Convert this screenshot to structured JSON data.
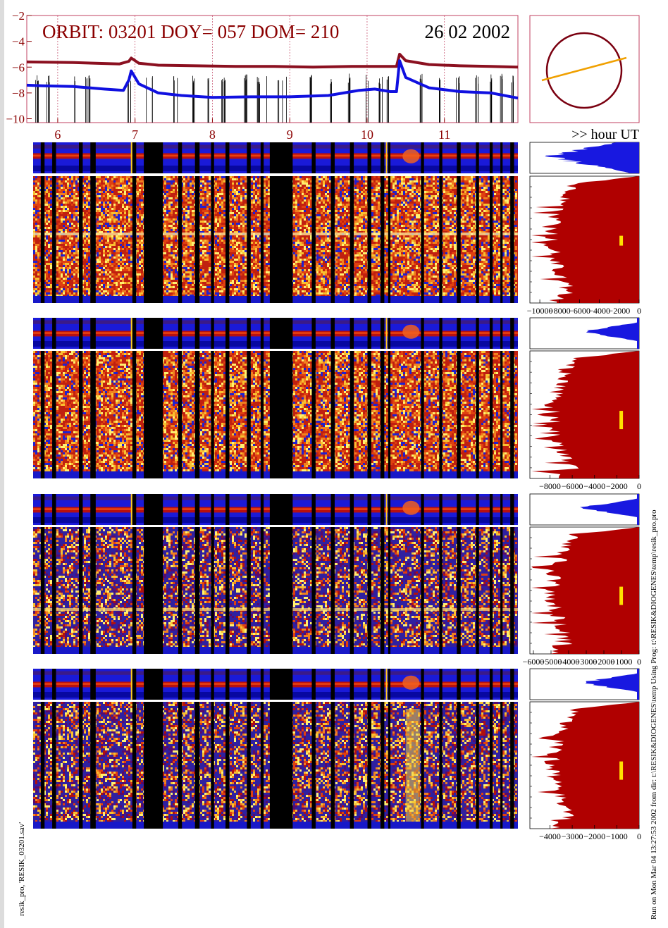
{
  "header": {
    "orbit_text": "ORBIT: 03201 DOY=  057 DOM=  210",
    "date_text": "26 02 2002",
    "hour_label": ">> hour UT"
  },
  "colors": {
    "title": "#8b0000",
    "curve_top": "#8b1020",
    "curve_bottom": "#1010e0",
    "hist_small": "#1818e0",
    "hist_large": "#b00000",
    "marker": "#ffe000",
    "orbit_line": "#f0a000",
    "vgrid": "#c04060"
  },
  "footer": {
    "left_text": "resik_pro, 'RESIK_03201.sav'",
    "right_text": "Run on Mon Mar 04 13:27:53 2002  from dir: t:\\RESIK&DIOGENES\\temp Using Prog: t:\\RESIK&DIOGENES\\temp\\resik_pro.pro"
  },
  "chart_data": [
    {
      "type": "line",
      "name": "top-lightcurve",
      "ylim": [
        -10.3,
        -2
      ],
      "yticks": [
        -2,
        -4,
        -6,
        -8,
        -10
      ],
      "xlim": [
        5.6,
        11.95
      ],
      "xticks": [
        6,
        7,
        8,
        9,
        10,
        11
      ],
      "series": [
        {
          "name": "",
          "color": "#8b1020",
          "x": [
            5.6,
            6.2,
            6.8,
            6.92,
            6.95,
            7.05,
            7.3,
            7.8,
            8.3,
            8.8,
            9.3,
            9.8,
            10.2,
            10.38,
            10.42,
            10.5,
            10.8,
            11.2,
            11.6,
            11.95
          ],
          "y": [
            -5.6,
            -5.65,
            -5.75,
            -5.55,
            -5.3,
            -5.7,
            -5.85,
            -5.9,
            -5.95,
            -5.95,
            -6.0,
            -5.95,
            -5.95,
            -5.95,
            -5.0,
            -5.5,
            -5.8,
            -5.9,
            -5.95,
            -6.0
          ]
        },
        {
          "name": "",
          "color": "#1010e0",
          "x": [
            5.6,
            5.8,
            6.2,
            6.6,
            6.85,
            6.92,
            6.95,
            7.05,
            7.3,
            7.6,
            8.0,
            8.5,
            9.0,
            9.5,
            9.9,
            10.1,
            10.3,
            10.38,
            10.42,
            10.5,
            10.8,
            11.2,
            11.6,
            11.95
          ],
          "y": [
            -7.4,
            -7.45,
            -7.5,
            -7.7,
            -7.8,
            -7.0,
            -6.3,
            -7.3,
            -8.0,
            -8.2,
            -8.35,
            -8.3,
            -8.3,
            -8.2,
            -7.8,
            -7.7,
            -7.9,
            -7.9,
            -5.5,
            -6.8,
            -7.6,
            -7.9,
            -8.0,
            -8.4
          ]
        }
      ],
      "title": "",
      "xlabel": "",
      "ylabel": ""
    },
    {
      "type": "line",
      "name": "orbit-diagram",
      "circle": {
        "center": [
          0,
          0
        ],
        "radius": 1
      },
      "segment": [
        [
          -1.15,
          -0.55
        ],
        [
          1.15,
          0.35
        ]
      ]
    },
    {
      "type": "heatmap",
      "name": "spectrogram-panels",
      "panels": 4,
      "gap_intervals_hour": [
        [
          5.7,
          5.75
        ],
        [
          5.85,
          5.9
        ],
        [
          6.2,
          6.25
        ],
        [
          6.35,
          6.42
        ],
        [
          6.9,
          6.95
        ],
        [
          7.05,
          7.3
        ],
        [
          7.5,
          7.55
        ],
        [
          7.72,
          7.78
        ],
        [
          7.93,
          7.97
        ],
        [
          8.12,
          8.17
        ],
        [
          8.4,
          8.45
        ],
        [
          8.58,
          8.62
        ],
        [
          8.7,
          9.0
        ],
        [
          9.25,
          9.3
        ],
        [
          9.5,
          9.55
        ],
        [
          9.75,
          9.8
        ],
        [
          9.98,
          10.03
        ],
        [
          10.15,
          10.2
        ],
        [
          10.25,
          10.28
        ],
        [
          10.68,
          10.72
        ],
        [
          10.92,
          10.96
        ],
        [
          11.15,
          11.2
        ],
        [
          11.4,
          11.44
        ],
        [
          11.58,
          11.62
        ],
        [
          11.72,
          11.75
        ],
        [
          11.85,
          11.9
        ]
      ]
    },
    {
      "type": "area",
      "name": "histogram-1",
      "xlim": [
        -11000,
        0
      ],
      "xticks": [
        -10000,
        -8000,
        -6000,
        -4000,
        -2000,
        0
      ],
      "tick_labels": [
        "−10000",
        "−8000",
        "−6000",
        "−4000",
        "−2000",
        "0"
      ]
    },
    {
      "type": "area",
      "name": "histogram-2",
      "xlim": [
        -9800,
        0
      ],
      "xticks": [
        -8000,
        -6000,
        -4000,
        -2000,
        0
      ],
      "tick_labels": [
        "−8000",
        "−6000",
        "−4000",
        "−2000",
        "0"
      ]
    },
    {
      "type": "area",
      "name": "histogram-3",
      "xlim": [
        -6200,
        0
      ],
      "xticks": [
        -6000,
        -5000,
        -4000,
        -3000,
        -2000,
        -1000,
        0
      ],
      "tick_labels": [
        "−6000",
        "−5000",
        "−4000",
        "−3000",
        "−2000",
        "−1000",
        "0"
      ]
    },
    {
      "type": "area",
      "name": "histogram-4",
      "xlim": [
        -4900,
        0
      ],
      "xticks": [
        -4000,
        -3000,
        -2000,
        -1000,
        0
      ],
      "tick_labels": [
        "−4000",
        "−3000",
        "−2000",
        "−1000",
        "0"
      ]
    }
  ]
}
